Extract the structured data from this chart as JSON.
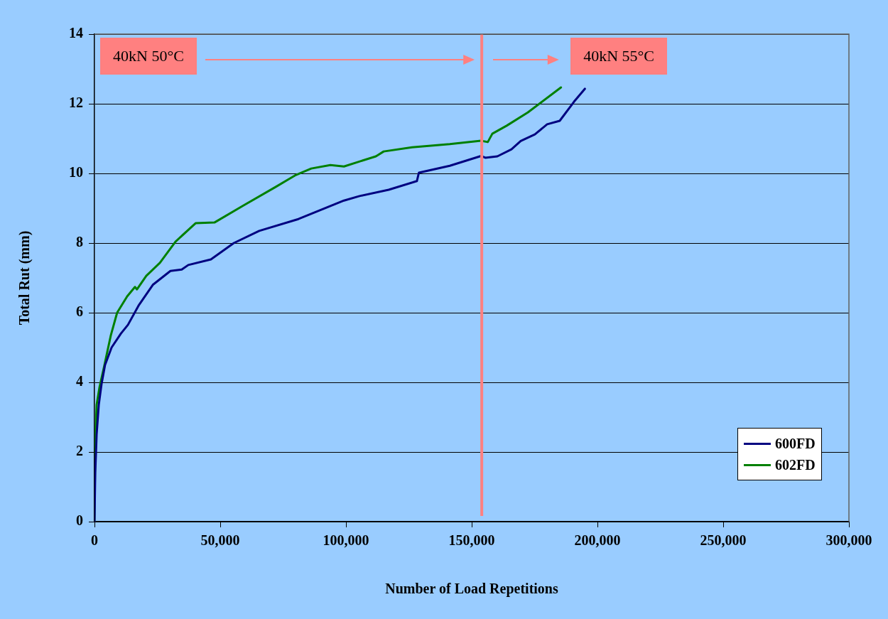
{
  "chart_data": {
    "type": "line",
    "xlabel": "Number of Load Repetitions",
    "ylabel": "Total Rut (mm)",
    "xlim": [
      0,
      300000
    ],
    "xticks": [
      {
        "value": 0,
        "label": "0"
      },
      {
        "value": 50000,
        "label": "50,000"
      },
      {
        "value": 100000,
        "label": "100,000"
      },
      {
        "value": 150000,
        "label": "150,000"
      },
      {
        "value": 200000,
        "label": "200,000"
      },
      {
        "value": 250000,
        "label": "250,000"
      },
      {
        "value": 300000,
        "label": "300,000"
      }
    ],
    "ylim": [
      0,
      14
    ],
    "yticks": [
      0,
      2,
      4,
      6,
      8,
      10,
      12,
      14
    ],
    "grid": "y",
    "legend": "bottom right",
    "marker": "none",
    "line_style": "solid",
    "ref_lines": [
      {
        "axis": "x",
        "value": 154000,
        "color": "#ff8080"
      }
    ],
    "annotations": [
      "40kN 50°C",
      "40kN 55°C"
    ],
    "series": [
      {
        "name": "600FD",
        "color": "#000080",
        "x": [
          0,
          300,
          850,
          1700,
          2800,
          4200,
          6800,
          10500,
          13300,
          17500,
          23200,
          30200,
          34700,
          37300,
          46300,
          55400,
          65500,
          81100,
          99200,
          105400,
          117000,
          128200,
          129000,
          141300,
          153700,
          155400,
          160200,
          165800,
          169500,
          175100,
          180000,
          185000,
          190700,
          195000
        ],
        "values": [
          0,
          1.4,
          2.5,
          3.35,
          3.95,
          4.5,
          5.0,
          5.4,
          5.65,
          6.2,
          6.8,
          7.2,
          7.24,
          7.37,
          7.53,
          8.0,
          8.35,
          8.69,
          9.22,
          9.35,
          9.53,
          9.78,
          10.02,
          10.22,
          10.5,
          10.45,
          10.49,
          10.69,
          10.93,
          11.12,
          11.41,
          11.51,
          12.06,
          12.43
        ]
      },
      {
        "name": "602FD",
        "color": "#008000",
        "x": [
          0,
          300,
          850,
          2000,
          4000,
          6500,
          9000,
          13000,
          16100,
          16900,
          20600,
          26000,
          32200,
          40200,
          47700,
          59300,
          72000,
          79700,
          86200,
          93800,
          99200,
          111900,
          115000,
          126300,
          141300,
          153700,
          156400,
          158200,
          163900,
          172300,
          185500
        ],
        "values": [
          0,
          2.3,
          3.35,
          3.86,
          4.51,
          5.35,
          6.0,
          6.47,
          6.74,
          6.67,
          7.06,
          7.43,
          8.04,
          8.57,
          8.59,
          9.08,
          9.61,
          9.94,
          10.14,
          10.24,
          10.2,
          10.49,
          10.63,
          10.75,
          10.84,
          10.94,
          10.9,
          11.14,
          11.37,
          11.75,
          12.47
        ]
      }
    ]
  }
}
